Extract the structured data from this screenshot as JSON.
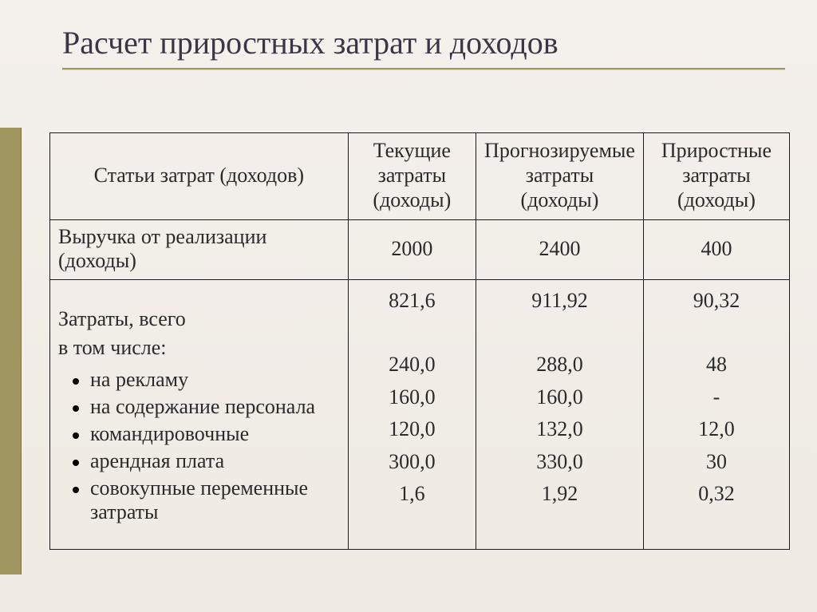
{
  "title": "Расчет приростных затрат и доходов",
  "columns": [
    "Статьи затрат (доходов)",
    "Текущие затраты (доходы)",
    "Прогнозируемые затраты (доходы)",
    "Приростные затраты (доходы)"
  ],
  "rows": [
    {
      "label": "Выручка от реализации (доходы)",
      "current": "2000",
      "forecast": "2400",
      "incremental": "400"
    }
  ],
  "group": {
    "head_lines": [
      "Затраты, всего",
      "в том числе:"
    ],
    "head_values": {
      "current": "821,6",
      "forecast": "911,92",
      "incremental": "90,32"
    },
    "items": [
      {
        "label": "на рекламу",
        "current": "240,0",
        "forecast": "288,0",
        "incremental": "48"
      },
      {
        "label": "на содержание персонала",
        "current": "160,0",
        "forecast": "160,0",
        "incremental": "-"
      },
      {
        "label": "командировочные",
        "current": "120,0",
        "forecast": "132,0",
        "incremental": "12,0"
      },
      {
        "label": "арендная плата",
        "current": "300,0",
        "forecast": "330,0",
        "incremental": "30"
      },
      {
        "label": "совокупные переменные затраты",
        "current": "1,6",
        "forecast": "1,92",
        "incremental": "0,32"
      }
    ]
  },
  "style": {
    "background_gradient": [
      "#f4f0ec",
      "#efeae3"
    ],
    "accent_color": "#9f975f",
    "title_color": "#3b3544",
    "border_color": "#1a1a1a",
    "title_fontsize": 40,
    "body_fontsize": 26,
    "font_family": "Georgia, Times New Roman, serif"
  }
}
